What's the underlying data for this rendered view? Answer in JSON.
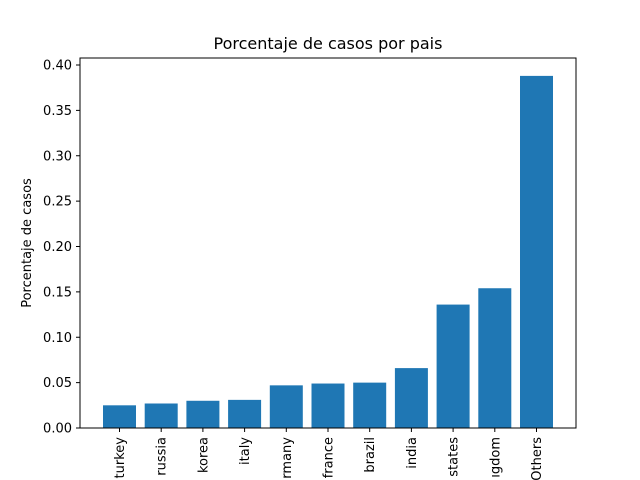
{
  "chart_data": {
    "type": "bar",
    "title": "Porcentaje de casos por pais",
    "xlabel": "",
    "ylabel": "Porcentaje de casos",
    "categories": [
      "turkey",
      "russia",
      "korea",
      "italy",
      "rmany",
      "france",
      "brazil",
      "india",
      "states",
      "ıgdom",
      "Others"
    ],
    "values": [
      0.025,
      0.027,
      0.03,
      0.031,
      0.047,
      0.049,
      0.05,
      0.066,
      0.136,
      0.154,
      0.388
    ],
    "ylim": [
      0,
      0.4
    ],
    "yticks": [
      "0.00",
      "0.05",
      "0.10",
      "0.15",
      "0.20",
      "0.25",
      "0.30",
      "0.35",
      "0.40"
    ],
    "bar_color": "#1f77b4",
    "grid": false,
    "legend": "none"
  }
}
